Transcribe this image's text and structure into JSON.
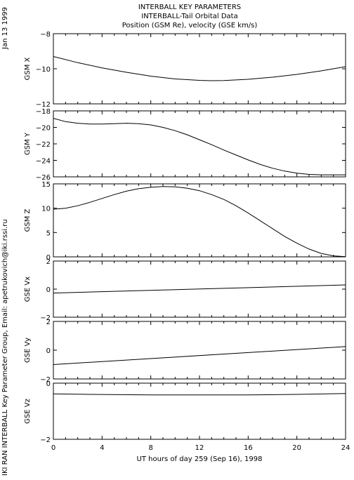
{
  "header": {
    "line1": "INTERBALL KEY PARAMETERS",
    "line2": "INTERBALL-Tail Orbital Data",
    "line3": "Position (GSM Re), velocity (GSE km/s)"
  },
  "side": {
    "date": "Jan 13 1999",
    "credit": "IKI RAN INTERBALL Key Parameter Group, Email: apetrukovich@iki.rssi.ru"
  },
  "chart_data": {
    "type": "line",
    "xlabel": "UT hours of day 259 (Sep 16), 1998",
    "xlim": [
      0,
      24
    ],
    "xticks": [
      0,
      4,
      8,
      12,
      16,
      20,
      24
    ],
    "panels": [
      {
        "ylabel": "GSM X",
        "ylim": [
          -12,
          -8
        ],
        "yticks": [
          -8,
          -10,
          -12
        ],
        "x": [
          0,
          2,
          4,
          6,
          8,
          10,
          12,
          13,
          14,
          16,
          18,
          20,
          22,
          24
        ],
        "y": [
          -9.3,
          -9.65,
          -9.95,
          -10.2,
          -10.42,
          -10.58,
          -10.66,
          -10.68,
          -10.67,
          -10.6,
          -10.48,
          -10.32,
          -10.12,
          -9.88
        ]
      },
      {
        "ylabel": "GSM Y",
        "ylim": [
          -26,
          -18
        ],
        "yticks": [
          -18,
          -20,
          -22,
          -24,
          -26
        ],
        "x": [
          0,
          1,
          2,
          3,
          4,
          5,
          6,
          7,
          8,
          9,
          10,
          11,
          12,
          13,
          14,
          15,
          16,
          17,
          18,
          19,
          20,
          21,
          22,
          23,
          24
        ],
        "y": [
          -18.9,
          -19.3,
          -19.5,
          -19.6,
          -19.6,
          -19.55,
          -19.5,
          -19.55,
          -19.7,
          -20.0,
          -20.4,
          -20.9,
          -21.5,
          -22.1,
          -22.75,
          -23.35,
          -23.95,
          -24.5,
          -24.95,
          -25.3,
          -25.55,
          -25.7,
          -25.75,
          -25.75,
          -25.75
        ]
      },
      {
        "ylabel": "GSM Z",
        "ylim": [
          0,
          15
        ],
        "yticks": [
          0,
          5,
          10,
          15
        ],
        "x": [
          0,
          1,
          2,
          3,
          4,
          5,
          6,
          7,
          8,
          9,
          10,
          11,
          12,
          13,
          14,
          15,
          16,
          17,
          18,
          19,
          20,
          21,
          22,
          23,
          24
        ],
        "y": [
          9.8,
          10.0,
          10.5,
          11.2,
          12.0,
          12.8,
          13.5,
          14.0,
          14.3,
          14.45,
          14.4,
          14.1,
          13.6,
          12.8,
          11.8,
          10.5,
          9.0,
          7.4,
          5.8,
          4.2,
          2.8,
          1.6,
          0.7,
          0.2,
          0.05
        ]
      },
      {
        "ylabel": "GSE Vx",
        "ylim": [
          -2,
          2
        ],
        "yticks": [
          2,
          0,
          -2
        ],
        "x": [
          0,
          24
        ],
        "y": [
          -0.28,
          0.3
        ]
      },
      {
        "ylabel": "GSE Vy",
        "ylim": [
          -2,
          2
        ],
        "yticks": [
          2,
          0,
          -2
        ],
        "x": [
          0,
          24
        ],
        "y": [
          -1.0,
          0.25
        ]
      },
      {
        "ylabel": "GSE Vz",
        "ylim": [
          -2,
          0
        ],
        "yticks": [
          0,
          -2
        ],
        "x": [
          0,
          3,
          8,
          16,
          20,
          24
        ],
        "y": [
          -0.38,
          -0.4,
          -0.42,
          -0.42,
          -0.4,
          -0.37
        ]
      }
    ]
  }
}
